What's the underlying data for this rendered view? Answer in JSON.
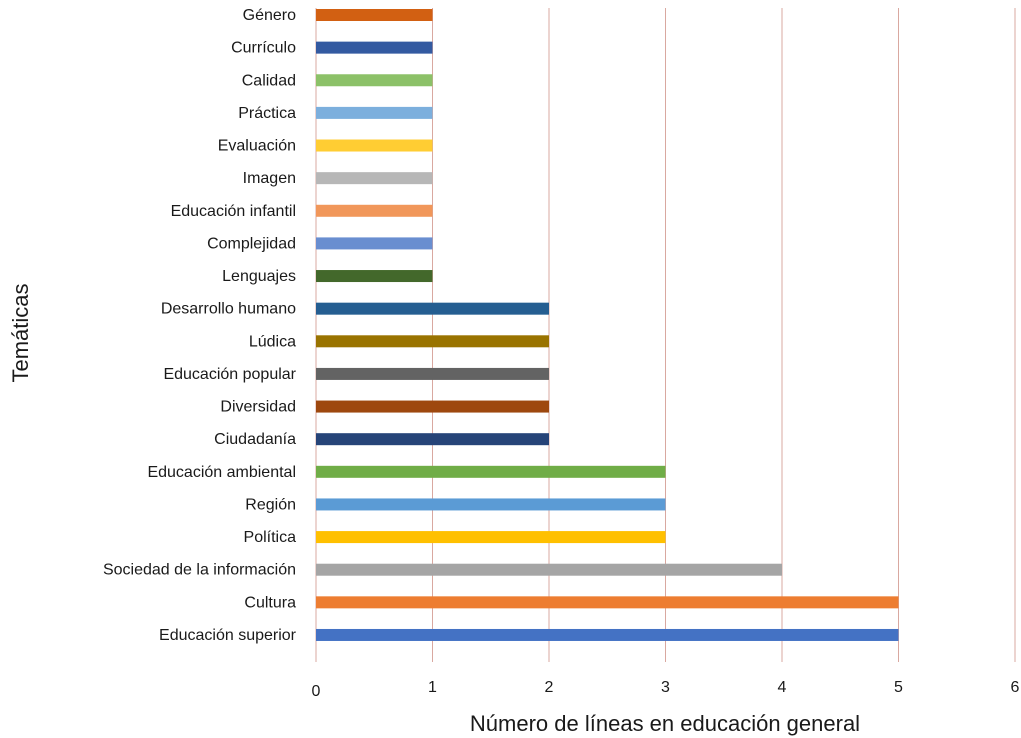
{
  "chart_data": {
    "type": "bar",
    "orientation": "horizontal",
    "xlabel": "Número de líneas en educación general",
    "ylabel": "Temáticas",
    "xlim": [
      0,
      6
    ],
    "xticks": [
      0,
      1,
      2,
      3,
      4,
      5,
      6
    ],
    "grid": "vertical",
    "categories": [
      "Educación superior",
      "Cultura",
      "Sociedad de la información",
      "Política",
      "Región",
      "Educación ambiental",
      "Ciudadanía",
      "Diversidad",
      "Educación popular",
      "Lúdica",
      "Desarrollo humano",
      "Lenguajes",
      "Complejidad",
      "Educación infantil",
      "Imagen",
      "Evaluación",
      "Práctica",
      "Calidad",
      "Currículo",
      "Género"
    ],
    "values": [
      5,
      5,
      4,
      3,
      3,
      3,
      2,
      2,
      2,
      2,
      2,
      1,
      1,
      1,
      1,
      1,
      1,
      1,
      1,
      1
    ],
    "colors": [
      "#4472C4",
      "#ED7D31",
      "#A5A5A5",
      "#FFC000",
      "#5B9BD5",
      "#70AD47",
      "#264478",
      "#9E480E",
      "#636363",
      "#997300",
      "#255E91",
      "#43682B",
      "#698ED0",
      "#F1975A",
      "#B7B7B7",
      "#FFCD33",
      "#7CAFDD",
      "#8CC168",
      "#335AA1",
      "#D26012"
    ]
  }
}
